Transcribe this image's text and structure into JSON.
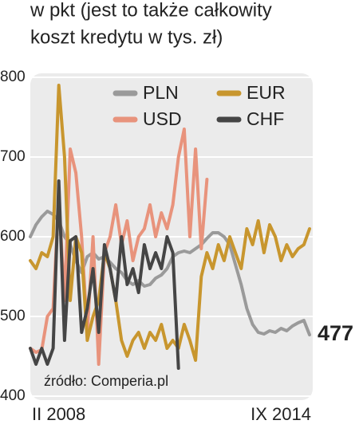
{
  "chart_data": {
    "type": "line",
    "title_lines": [
      "w pkt (jest to także całkowity",
      "koszt kredytu w tys. zł)"
    ],
    "annotation": "źródło: Comperia.pl",
    "categories": [
      "II 2008",
      null,
      null,
      null,
      null,
      null,
      null,
      null,
      null,
      null,
      null,
      null,
      null,
      null,
      null,
      null,
      null,
      null,
      null,
      null,
      null,
      null,
      null,
      null,
      null,
      null,
      null,
      null,
      null,
      null,
      null,
      null,
      null,
      null,
      null,
      null,
      null,
      null,
      null,
      null,
      null,
      null,
      null,
      null,
      null,
      null,
      null,
      null,
      null,
      "IX 2014"
    ],
    "series": [
      {
        "name": "PLN",
        "color": "#9a9a9a",
        "values": [
          600,
          615,
          625,
          632,
          628,
          620,
          600,
          590,
          570,
          555,
          575,
          580,
          572,
          575,
          568,
          560,
          555,
          545,
          540,
          545,
          538,
          540,
          548,
          552,
          560,
          575,
          580,
          582,
          580,
          585,
          590,
          598,
          605,
          605,
          600,
          590,
          565,
          540,
          510,
          490,
          480,
          478,
          482,
          480,
          485,
          482,
          488,
          492,
          495,
          477
        ]
      },
      {
        "name": "USD",
        "color": "#e8937c",
        "values": [
          460,
          455,
          458,
          500,
          510,
          650,
          520,
          710,
          680,
          600,
          480,
          600,
          440,
          580,
          600,
          640,
          590,
          620,
          570,
          600,
          610,
          640,
          600,
          630,
          610,
          640,
          700,
          735,
          600,
          710,
          585,
          672,
          null,
          null,
          null,
          null,
          null,
          null,
          null,
          null,
          null,
          null,
          null,
          null,
          null,
          null,
          null,
          null,
          null,
          null
        ]
      },
      {
        "name": "EUR",
        "color": "#c8962e",
        "values": [
          570,
          560,
          580,
          575,
          600,
          790,
          700,
          520,
          600,
          580,
          470,
          500,
          520,
          580,
          560,
          520,
          470,
          450,
          470,
          480,
          460,
          480,
          470,
          490,
          460,
          470,
          460,
          490,
          470,
          445,
          550,
          580,
          560,
          590,
          570,
          600,
          580,
          560,
          610,
          590,
          620,
          580,
          615,
          600,
          570,
          590,
          575,
          585,
          590,
          610
        ]
      },
      {
        "name": "CHF",
        "color": "#454545",
        "values": [
          460,
          440,
          460,
          440,
          460,
          670,
          470,
          595,
          600,
          480,
          510,
          560,
          480,
          590,
          560,
          520,
          600,
          540,
          560,
          530,
          590,
          560,
          580,
          560,
          600,
          580,
          435,
          null,
          null,
          null,
          null,
          null,
          null,
          null,
          null,
          null,
          null,
          null,
          null,
          null,
          null,
          null,
          null,
          null,
          null,
          null,
          null,
          null,
          null,
          null
        ]
      }
    ],
    "ylim": [
      400,
      800
    ],
    "yticks": [
      400,
      500,
      600,
      700,
      800
    ],
    "grid": true,
    "legend": "top"
  }
}
